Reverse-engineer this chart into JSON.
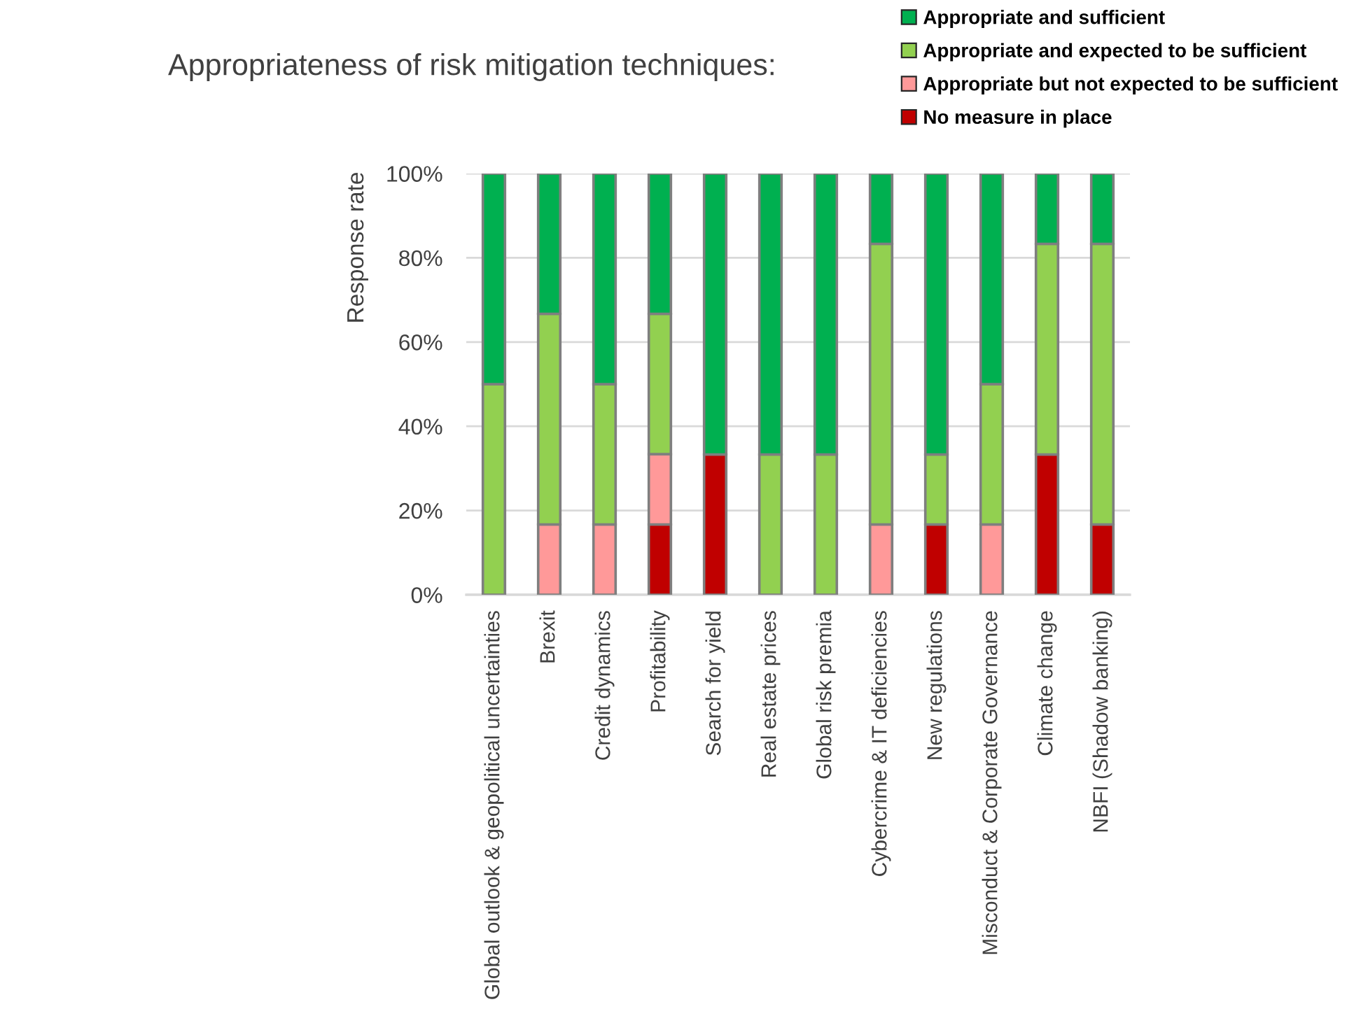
{
  "chart_data": {
    "type": "bar",
    "title": "Appropriateness of risk mitigation techniques:",
    "ylabel": "Response rate",
    "categories": [
      "Global outlook & geopolitical uncertainties",
      "Brexit",
      "Credit dynamics",
      "Profitability",
      "Search for yield",
      "Real estate prices",
      "Global risk premia",
      "Cybercrime & IT deficiencies",
      "New regulations",
      "Misconduct & Corporate Governance",
      "Climate change",
      "NBFI (Shadow banking)"
    ],
    "stacked": true,
    "series": [
      {
        "name": "No measure in place",
        "color": "#c00000",
        "values": [
          0,
          0,
          0,
          16.7,
          33.3,
          0,
          0,
          0,
          16.7,
          0,
          33.3,
          16.7
        ]
      },
      {
        "name": "Appropriate but not expected to be sufficient",
        "color": "#ff9999",
        "values": [
          0,
          16.7,
          16.7,
          16.7,
          0,
          0,
          0,
          16.7,
          0,
          16.7,
          0,
          0
        ]
      },
      {
        "name": "Appropriate and expected to be sufficient",
        "color": "#92d050",
        "values": [
          50,
          50,
          33.3,
          33.3,
          0,
          33.3,
          33.3,
          66.6,
          16.6,
          33.3,
          50,
          66.6
        ]
      },
      {
        "name": "Appropriate and sufficient",
        "color": "#00b050",
        "values": [
          50,
          33.3,
          50,
          33.3,
          66.7,
          66.7,
          66.7,
          16.7,
          66.7,
          50,
          16.7,
          16.7
        ]
      }
    ],
    "ylim": [
      0,
      100
    ],
    "yticks": [
      {
        "value": 0,
        "label": "0%"
      },
      {
        "value": 20,
        "label": "20%"
      },
      {
        "value": 40,
        "label": "40%"
      },
      {
        "value": 60,
        "label": "60%"
      },
      {
        "value": 80,
        "label": "80%"
      },
      {
        "value": 100,
        "label": "100%"
      }
    ],
    "grid": "y",
    "legend": "top right"
  }
}
